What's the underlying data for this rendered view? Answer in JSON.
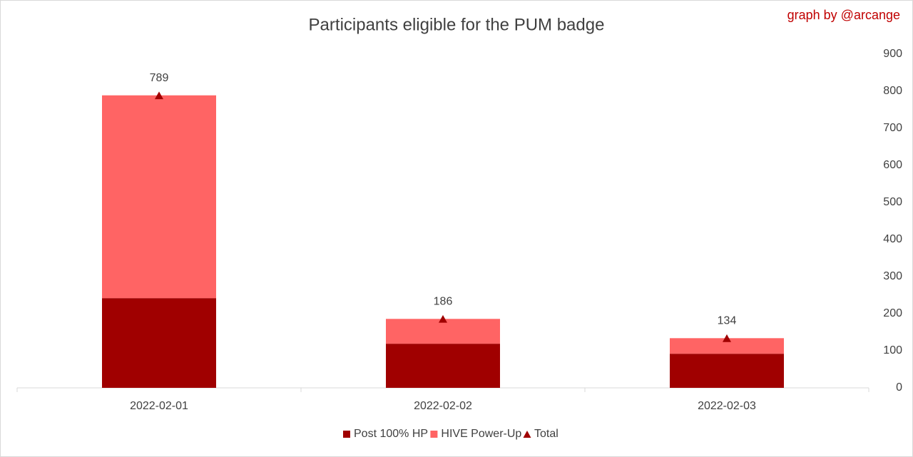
{
  "chart_data": {
    "type": "bar",
    "stacked": true,
    "title": "Participants eligible for the PUM badge",
    "annotation": "graph by @arcange",
    "categories": [
      "2022-02-01",
      "2022-02-02",
      "2022-02-03"
    ],
    "series": [
      {
        "name": "Post 100% HP",
        "color": "#a00000",
        "values": [
          242,
          119,
          92
        ]
      },
      {
        "name": "HIVE Power-Up",
        "color": "#ff6464",
        "values": [
          547,
          67,
          42
        ]
      },
      {
        "name": "Total",
        "color": "#a00000",
        "marker": "triangle",
        "show_labels": true,
        "values": [
          789,
          186,
          134
        ]
      }
    ],
    "ylim": [
      0,
      900
    ],
    "yticks": [
      0,
      100,
      200,
      300,
      400,
      500,
      600,
      700,
      800,
      900
    ],
    "y_axis_side": "right",
    "grid": false,
    "legend": "bottom"
  }
}
